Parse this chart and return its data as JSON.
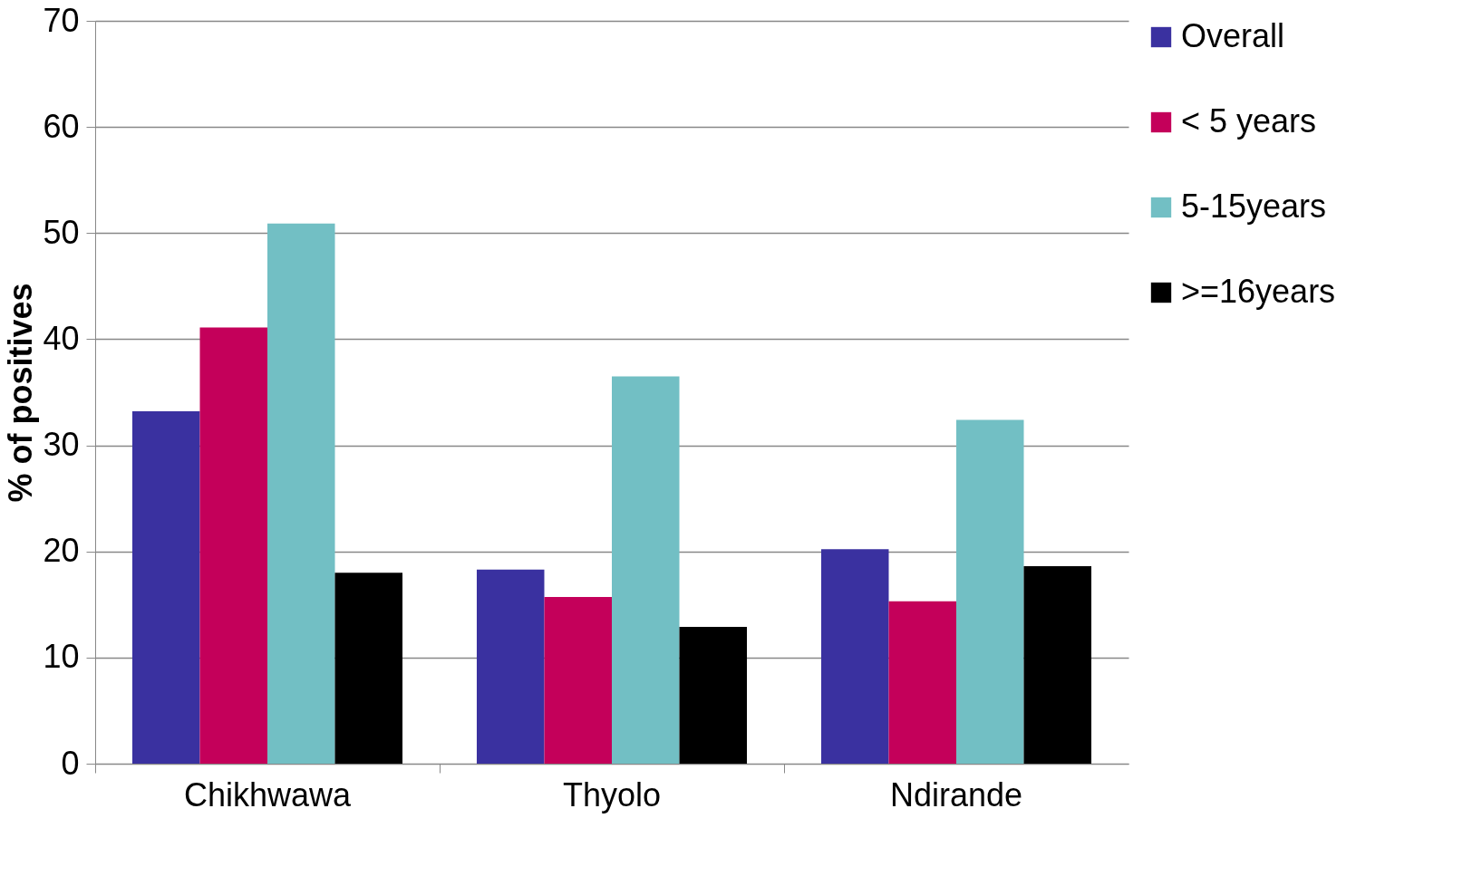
{
  "chart_data": {
    "type": "bar",
    "ylabel": "% of positives",
    "categories": [
      "Chikhwawa",
      "Thyolo",
      "Ndirande"
    ],
    "series": [
      {
        "name": "Overall",
        "color": "#3a31a0",
        "values": [
          33.2,
          18.3,
          20.2
        ]
      },
      {
        "name": "< 5 years",
        "color": "#c4005a",
        "values": [
          41.1,
          15.7,
          15.3
        ]
      },
      {
        "name": "5-15years",
        "color": "#72bfc4",
        "values": [
          50.9,
          36.5,
          32.4
        ]
      },
      {
        "name": ">=16years",
        "color": "#000000",
        "values": [
          18.0,
          12.9,
          18.6
        ]
      }
    ],
    "ylim": [
      0,
      70
    ],
    "yticks": [
      0,
      10,
      20,
      30,
      40,
      50,
      60,
      70
    ],
    "grid": "y",
    "legend": "right"
  }
}
